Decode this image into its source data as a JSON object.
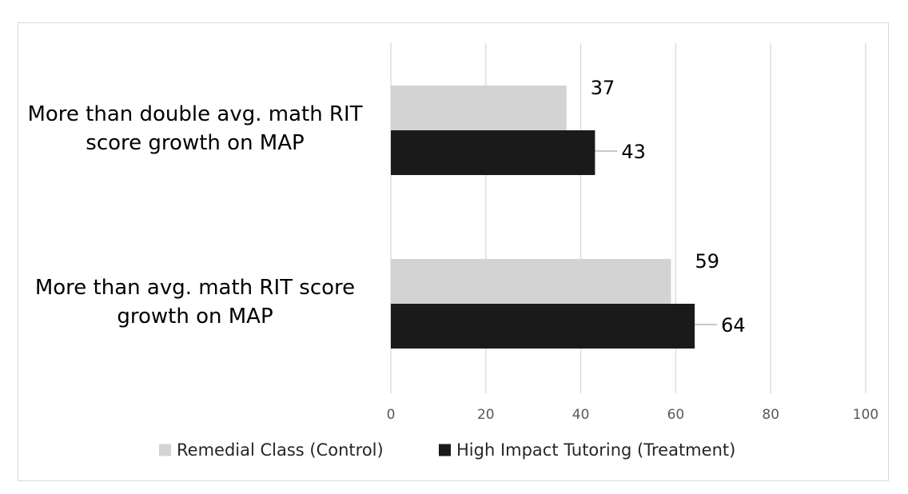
{
  "chart_data": {
    "type": "bar",
    "orientation": "horizontal",
    "categories": [
      "More than double avg. math RIT score growth on MAP",
      "More than avg. math RIT score growth on MAP"
    ],
    "category_lines": [
      [
        "More than double avg. math RIT",
        "score growth on MAP"
      ],
      [
        "More than avg. math RIT score",
        "growth on MAP"
      ]
    ],
    "series": [
      {
        "name": "Remedial Class (Control)",
        "values": [
          37,
          59
        ],
        "color": "#d3d3d3"
      },
      {
        "name": "High Impact Tutoring (Treatment)",
        "values": [
          43,
          64
        ],
        "color": "#1a1a1a"
      }
    ],
    "xlim": [
      0,
      100
    ],
    "xticks": [
      0,
      20,
      40,
      60,
      80,
      100
    ],
    "grid": true,
    "legend_position": "bottom"
  }
}
